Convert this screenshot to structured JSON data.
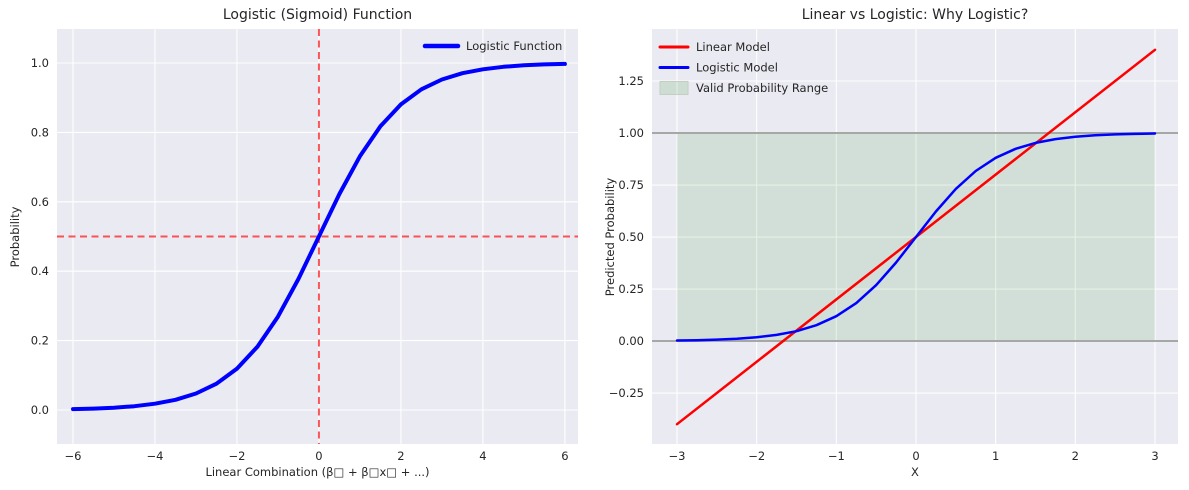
{
  "figure": {
    "background": "#ffffff",
    "axes_background": "#eaeaf2",
    "grid_color": "#ffffff",
    "text_color": "#262626"
  },
  "chart_data": [
    {
      "type": "line",
      "title": "Logistic (Sigmoid) Function",
      "xlabel": "Linear Combination (β□ + β□x□ + ...)",
      "ylabel": "Probability",
      "xlim": [
        -6.39,
        6.32
      ],
      "ylim": [
        -0.098,
        1.098
      ],
      "grid": true,
      "xticks": [
        -6,
        -4,
        -2,
        0,
        2,
        4,
        6
      ],
      "xtick_labels": [
        "−6",
        "−4",
        "−2",
        "0",
        "2",
        "4",
        "6"
      ],
      "yticks": [
        0,
        0.2,
        0.4,
        0.6,
        0.8,
        1.0
      ],
      "ytick_labels": [
        "0.0",
        "0.2",
        "0.4",
        "0.6",
        "0.8",
        "1.0"
      ],
      "legend": {
        "position": "upper-right",
        "items": [
          {
            "swatch": "line",
            "color": "#0000ff",
            "label": "Logistic Function"
          }
        ]
      },
      "series": [
        {
          "name": "threshold-hline",
          "type": "hline",
          "y": 0.5,
          "color": "rgba(255,0,0,0.65)",
          "width": 2,
          "dash": "7,4.5"
        },
        {
          "name": "center-vline",
          "type": "vline",
          "x": 0,
          "color": "rgba(255,0,0,0.65)",
          "width": 2,
          "dash": "7,4.5"
        },
        {
          "name": "logistic-function-curve",
          "type": "line",
          "color": "#0000ff",
          "width": 4,
          "x": [
            -6,
            -5.5,
            -5,
            -4.5,
            -4,
            -3.5,
            -3,
            -2.5,
            -2,
            -1.5,
            -1,
            -0.5,
            0,
            0.5,
            1,
            1.5,
            2,
            2.5,
            3,
            3.5,
            4,
            4.5,
            5,
            5.5,
            6
          ],
          "y": [
            0.0025,
            0.0041,
            0.0067,
            0.011,
            0.018,
            0.0293,
            0.0474,
            0.0759,
            0.1192,
            0.1824,
            0.2689,
            0.3775,
            0.5,
            0.6225,
            0.7311,
            0.8176,
            0.8808,
            0.9241,
            0.9526,
            0.9707,
            0.982,
            0.989,
            0.9933,
            0.9959,
            0.9975
          ]
        }
      ]
    },
    {
      "type": "line",
      "title": "Linear vs Logistic: Why Logistic?",
      "xlabel": "X",
      "ylabel": "Predicted Probability",
      "xlim": [
        -3.314,
        3.289
      ],
      "ylim": [
        -0.495,
        1.5
      ],
      "grid": true,
      "xticks": [
        -3,
        -2,
        -1,
        0,
        1,
        2,
        3
      ],
      "xtick_labels": [
        "−3",
        "−2",
        "−1",
        "0",
        "1",
        "2",
        "3"
      ],
      "yticks": [
        -0.25,
        0,
        0.25,
        0.5,
        0.75,
        1.0,
        1.25
      ],
      "ytick_labels": [
        "−0.25",
        "0.00",
        "0.25",
        "0.50",
        "0.75",
        "1.00",
        "1.25"
      ],
      "legend": {
        "position": "upper-left",
        "items": [
          {
            "swatch": "line",
            "color": "#ff0000",
            "label": "Linear Model"
          },
          {
            "swatch": "line",
            "color": "#0000ff",
            "label": "Logistic Model"
          },
          {
            "swatch": "patch",
            "color": "rgba(0,128,0,0.12)",
            "border": "#c3cfc3",
            "label": "Valid Probability Range"
          }
        ]
      },
      "series": [
        {
          "name": "valid-probability-band",
          "type": "band",
          "x0": -3,
          "x1": 3,
          "y0": 0,
          "y1": 1,
          "color": "rgba(0,128,0,0.1)"
        },
        {
          "name": "lower-bound-hline",
          "type": "hline",
          "y": 0,
          "color": "#a5a8a5",
          "width": 2
        },
        {
          "name": "upper-bound-hline",
          "type": "hline",
          "y": 1,
          "color": "#a5a8a5",
          "width": 2
        },
        {
          "name": "linear-model-line",
          "type": "line",
          "color": "#ff0000",
          "width": 2.5,
          "x": [
            -3,
            3
          ],
          "y": [
            -0.4,
            1.4
          ]
        },
        {
          "name": "logistic-model-curve",
          "type": "line",
          "color": "#0000ff",
          "width": 2.5,
          "x": [
            -3,
            -2.75,
            -2.5,
            -2.25,
            -2,
            -1.75,
            -1.5,
            -1.25,
            -1,
            -0.75,
            -0.5,
            -0.25,
            0,
            0.25,
            0.5,
            0.75,
            1,
            1.25,
            1.5,
            1.75,
            2,
            2.25,
            2.5,
            2.75,
            3
          ],
          "y": [
            0.0025,
            0.0041,
            0.0067,
            0.011,
            0.018,
            0.0293,
            0.0474,
            0.0759,
            0.1192,
            0.1824,
            0.2689,
            0.3775,
            0.5,
            0.6225,
            0.7311,
            0.8176,
            0.8808,
            0.9241,
            0.9526,
            0.9707,
            0.982,
            0.989,
            0.9933,
            0.9959,
            0.9975
          ]
        }
      ]
    }
  ]
}
